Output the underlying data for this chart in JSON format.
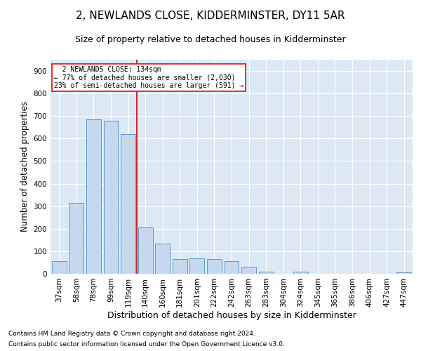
{
  "title": "2, NEWLANDS CLOSE, KIDDERMINSTER, DY11 5AR",
  "subtitle": "Size of property relative to detached houses in Kidderminster",
  "xlabel": "Distribution of detached houses by size in Kidderminster",
  "ylabel": "Number of detached properties",
  "footnote1": "Contains HM Land Registry data © Crown copyright and database right 2024.",
  "footnote2": "Contains public sector information licensed under the Open Government Licence v3.0.",
  "annotation_line1": "  2 NEWLANDS CLOSE: 134sqm  ",
  "annotation_line2": "← 77% of detached houses are smaller (2,030)",
  "annotation_line3": "23% of semi-detached houses are larger (591) →",
  "bar_color": "#c5d8ed",
  "bar_edge_color": "#5b9bd5",
  "vline_color": "#cc0000",
  "vline_x_idx": 4,
  "categories": [
    "37sqm",
    "58sqm",
    "78sqm",
    "99sqm",
    "119sqm",
    "140sqm",
    "160sqm",
    "181sqm",
    "201sqm",
    "222sqm",
    "242sqm",
    "263sqm",
    "283sqm",
    "304sqm",
    "324sqm",
    "345sqm",
    "365sqm",
    "386sqm",
    "406sqm",
    "427sqm",
    "447sqm"
  ],
  "values": [
    55,
    315,
    685,
    680,
    620,
    205,
    135,
    65,
    70,
    65,
    55,
    30,
    8,
    0,
    8,
    0,
    0,
    0,
    0,
    0,
    5
  ],
  "ylim": [
    0,
    950
  ],
  "yticks": [
    0,
    100,
    200,
    300,
    400,
    500,
    600,
    700,
    800,
    900
  ],
  "background_color": "#dce9f5",
  "grid_color": "#ffffff",
  "title_fontsize": 11,
  "subtitle_fontsize": 9,
  "axis_label_fontsize": 8.5,
  "tick_fontsize": 7.5,
  "footnote_fontsize": 6.5
}
